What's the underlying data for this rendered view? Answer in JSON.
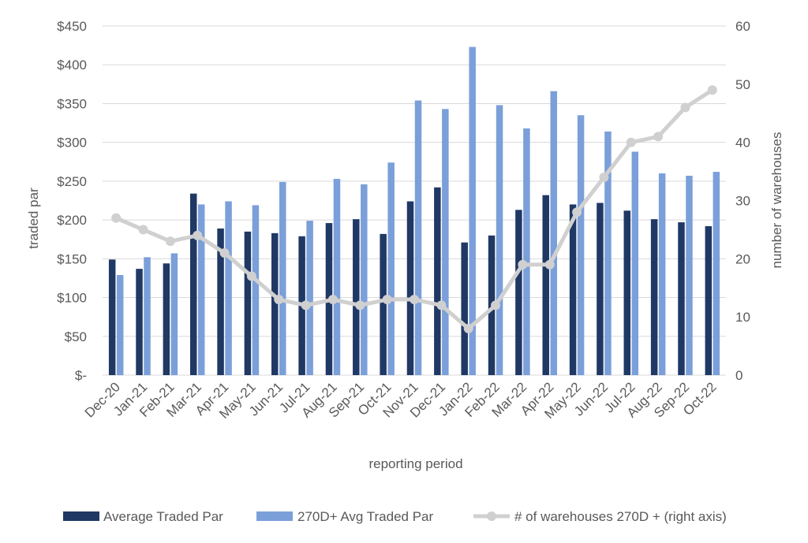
{
  "chart_data": {
    "type": "bar",
    "categories": [
      "Dec-20",
      "Jan-21",
      "Feb-21",
      "Mar-21",
      "Apr-21",
      "May-21",
      "Jun-21",
      "Jul-21",
      "Aug-21",
      "Sep-21",
      "Oct-21",
      "Nov-21",
      "Dec-21",
      "Jan-22",
      "Feb-22",
      "Mar-22",
      "Apr-22",
      "May-22",
      "Jun-22",
      "Jul-22",
      "Aug-22",
      "Sep-22",
      "Oct-22"
    ],
    "series": [
      {
        "name": "Average Traded Par",
        "type": "bar",
        "axis": "left",
        "color": "#203864",
        "values": [
          149,
          137,
          144,
          234,
          189,
          185,
          183,
          179,
          196,
          201,
          182,
          224,
          242,
          171,
          180,
          213,
          232,
          220,
          222,
          212,
          201,
          197,
          192
        ]
      },
      {
        "name": "270D+ Avg Traded Par",
        "type": "bar",
        "axis": "left",
        "color": "#7b9fd9",
        "values": [
          129,
          152,
          157,
          220,
          224,
          219,
          249,
          199,
          253,
          246,
          274,
          354,
          343,
          423,
          348,
          318,
          366,
          335,
          314,
          288,
          260,
          257,
          262
        ]
      },
      {
        "name": "# of warehouses 270D + (right axis)",
        "type": "line",
        "axis": "right",
        "color": "#d0d0d0",
        "values": [
          27,
          25,
          23,
          24,
          21,
          17,
          13,
          12,
          13,
          12,
          13,
          13,
          12,
          8,
          12,
          19,
          19,
          28,
          34,
          40,
          41,
          46,
          49
        ]
      }
    ],
    "title": "",
    "xlabel": "reporting period",
    "ylabel": "traded par",
    "y2label": "number of warehouses",
    "ylim": [
      0,
      450
    ],
    "y2lim": [
      0,
      60
    ],
    "yticks": [
      "$-",
      "$50",
      "$100",
      "$150",
      "$200",
      "$250",
      "$300",
      "$350",
      "$400",
      "$450"
    ],
    "y2ticks": [
      "0",
      "10",
      "20",
      "30",
      "40",
      "50",
      "60"
    ],
    "grid": true,
    "legend": "bottom"
  }
}
